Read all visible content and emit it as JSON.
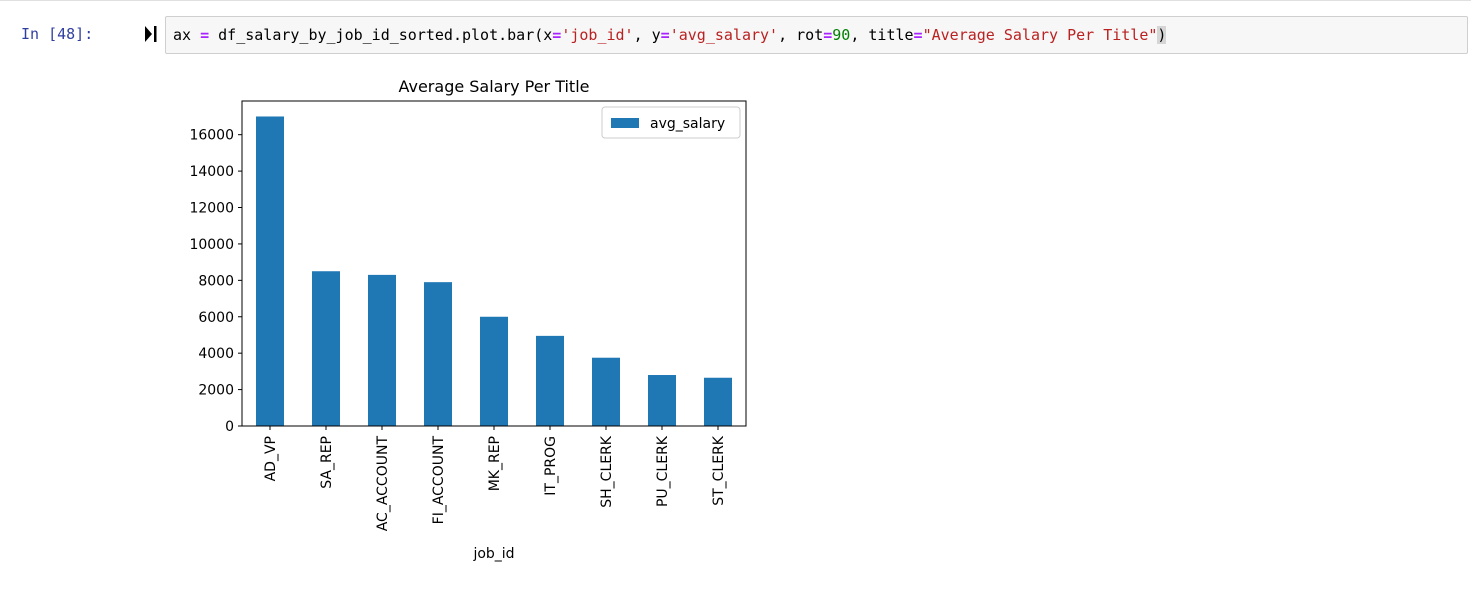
{
  "cell": {
    "prompt": "In [48]:",
    "code_tokens": [
      {
        "t": "ax ",
        "c": "plain"
      },
      {
        "t": "=",
        "c": "op"
      },
      {
        "t": " df_salary_by_job_id_sorted.plot.bar(x",
        "c": "plain"
      },
      {
        "t": "=",
        "c": "op"
      },
      {
        "t": "'job_id'",
        "c": "str"
      },
      {
        "t": ", y",
        "c": "plain"
      },
      {
        "t": "=",
        "c": "op"
      },
      {
        "t": "'avg_salary'",
        "c": "str"
      },
      {
        "t": ", rot",
        "c": "plain"
      },
      {
        "t": "=",
        "c": "op"
      },
      {
        "t": "90",
        "c": "num"
      },
      {
        "t": ", title",
        "c": "plain"
      },
      {
        "t": "=",
        "c": "op"
      },
      {
        "t": "\"Average Salary Per Title\"",
        "c": "str"
      },
      {
        "t": ")",
        "c": "paren"
      }
    ]
  },
  "chart_data": {
    "type": "bar",
    "title": "Average Salary Per Title",
    "xlabel": "job_id",
    "ylabel": "",
    "categories": [
      "AD_VP",
      "SA_REP",
      "AC_ACCOUNT",
      "FI_ACCOUNT",
      "MK_REP",
      "IT_PROG",
      "SH_CLERK",
      "PU_CLERK",
      "ST_CLERK"
    ],
    "series": [
      {
        "name": "avg_salary",
        "values": [
          17000,
          8500,
          8300,
          7900,
          6000,
          4950,
          3750,
          2800,
          2650
        ],
        "color": "#1f77b4"
      }
    ],
    "yticks": [
      0,
      2000,
      4000,
      6000,
      8000,
      10000,
      12000,
      14000,
      16000
    ],
    "ylim": [
      0,
      17850
    ],
    "legend_position": "top-right",
    "grid": false
  },
  "colors": {
    "bar": "#1f77b4",
    "prompt": "#303f9f",
    "code_background": "#f7f7f7"
  },
  "icons": {
    "run": "run-cell-icon"
  }
}
